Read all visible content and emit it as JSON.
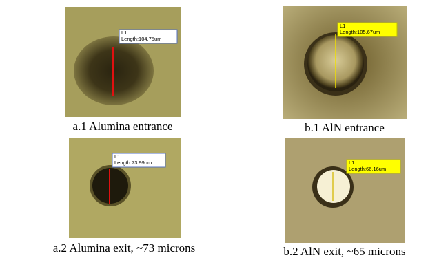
{
  "panels": [
    {
      "label": "L1",
      "measurement": "Length:104.75um",
      "caption": "a.1 Alumina entrance"
    },
    {
      "label": "L1",
      "measurement": "Length:105.67um",
      "caption": "b.1 AlN entrance"
    },
    {
      "label": "L1",
      "measurement": "Length:73.99um",
      "caption": "a.2 Alumina exit, ~73 microns"
    },
    {
      "label": "L1",
      "measurement": "Length:66.16um",
      "caption": "b.2 AlN exit, ~65 microns"
    }
  ]
}
